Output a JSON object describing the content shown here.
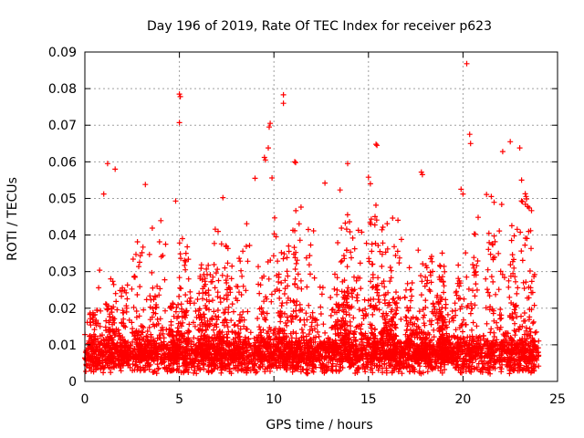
{
  "chart_data": {
    "type": "scatter",
    "title": "Day 196 of 2019, Rate Of TEC Index for receiver p623",
    "xlabel": "GPS time / hours",
    "ylabel": "ROTI / TECUs",
    "xlim": [
      0,
      25
    ],
    "ylim": [
      0,
      0.09
    ],
    "xticks": [
      "0",
      "5",
      "10",
      "15",
      "20",
      "25"
    ],
    "yticks": [
      "0",
      "0.01",
      "0.02",
      "0.03",
      "0.04",
      "0.05",
      "0.06",
      "0.07",
      "0.08",
      "0.09"
    ],
    "grid": true,
    "marker": "+",
    "color": "#ff0000",
    "series": [
      {
        "name": "ROTI",
        "notable_points": [
          [
            20.2,
            0.0868
          ],
          [
            5.0,
            0.0785
          ],
          [
            5.05,
            0.0778
          ],
          [
            10.5,
            0.0783
          ],
          [
            10.5,
            0.076
          ],
          [
            5.0,
            0.0707
          ],
          [
            9.8,
            0.0705
          ],
          [
            9.75,
            0.0695
          ],
          [
            20.35,
            0.0675
          ],
          [
            20.4,
            0.065
          ],
          [
            22.5,
            0.0655
          ],
          [
            15.4,
            0.0648
          ],
          [
            15.45,
            0.0645
          ],
          [
            9.7,
            0.0638
          ],
          [
            23.0,
            0.0638
          ],
          [
            22.1,
            0.0628
          ],
          [
            9.5,
            0.0612
          ],
          [
            9.55,
            0.0605
          ],
          [
            11.1,
            0.06
          ],
          [
            11.15,
            0.0598
          ],
          [
            1.2,
            0.0595
          ],
          [
            13.9,
            0.0595
          ],
          [
            1.6,
            0.058
          ],
          [
            17.8,
            0.0572
          ],
          [
            17.85,
            0.0565
          ],
          [
            9.9,
            0.0556
          ],
          [
            15.0,
            0.0558
          ],
          [
            9.0,
            0.0555
          ],
          [
            23.1,
            0.055
          ],
          [
            3.2,
            0.0538
          ],
          [
            15.1,
            0.054
          ],
          [
            12.7,
            0.0542
          ],
          [
            19.9,
            0.0525
          ],
          [
            13.5,
            0.0523
          ],
          [
            20.0,
            0.0512
          ],
          [
            1.0,
            0.0512
          ],
          [
            7.3,
            0.0502
          ],
          [
            4.8,
            0.0493
          ]
        ],
        "bands": [
          {
            "x": [
              0,
              3
            ],
            "y_max": 0.045
          },
          {
            "x": [
              3,
              7
            ],
            "y_max": 0.045
          },
          {
            "x": [
              7,
              12
            ],
            "y_max": 0.05
          },
          {
            "x": [
              12,
              14.5
            ],
            "y_max": 0.052
          },
          {
            "x": [
              14.5,
              17.5
            ],
            "y_max": 0.05
          },
          {
            "x": [
              17.5,
              20
            ],
            "y_max": 0.045
          },
          {
            "x": [
              20,
              24
            ],
            "y_max": 0.055
          }
        ],
        "baseline_range": [
          0.002,
          0.01
        ]
      }
    ]
  }
}
